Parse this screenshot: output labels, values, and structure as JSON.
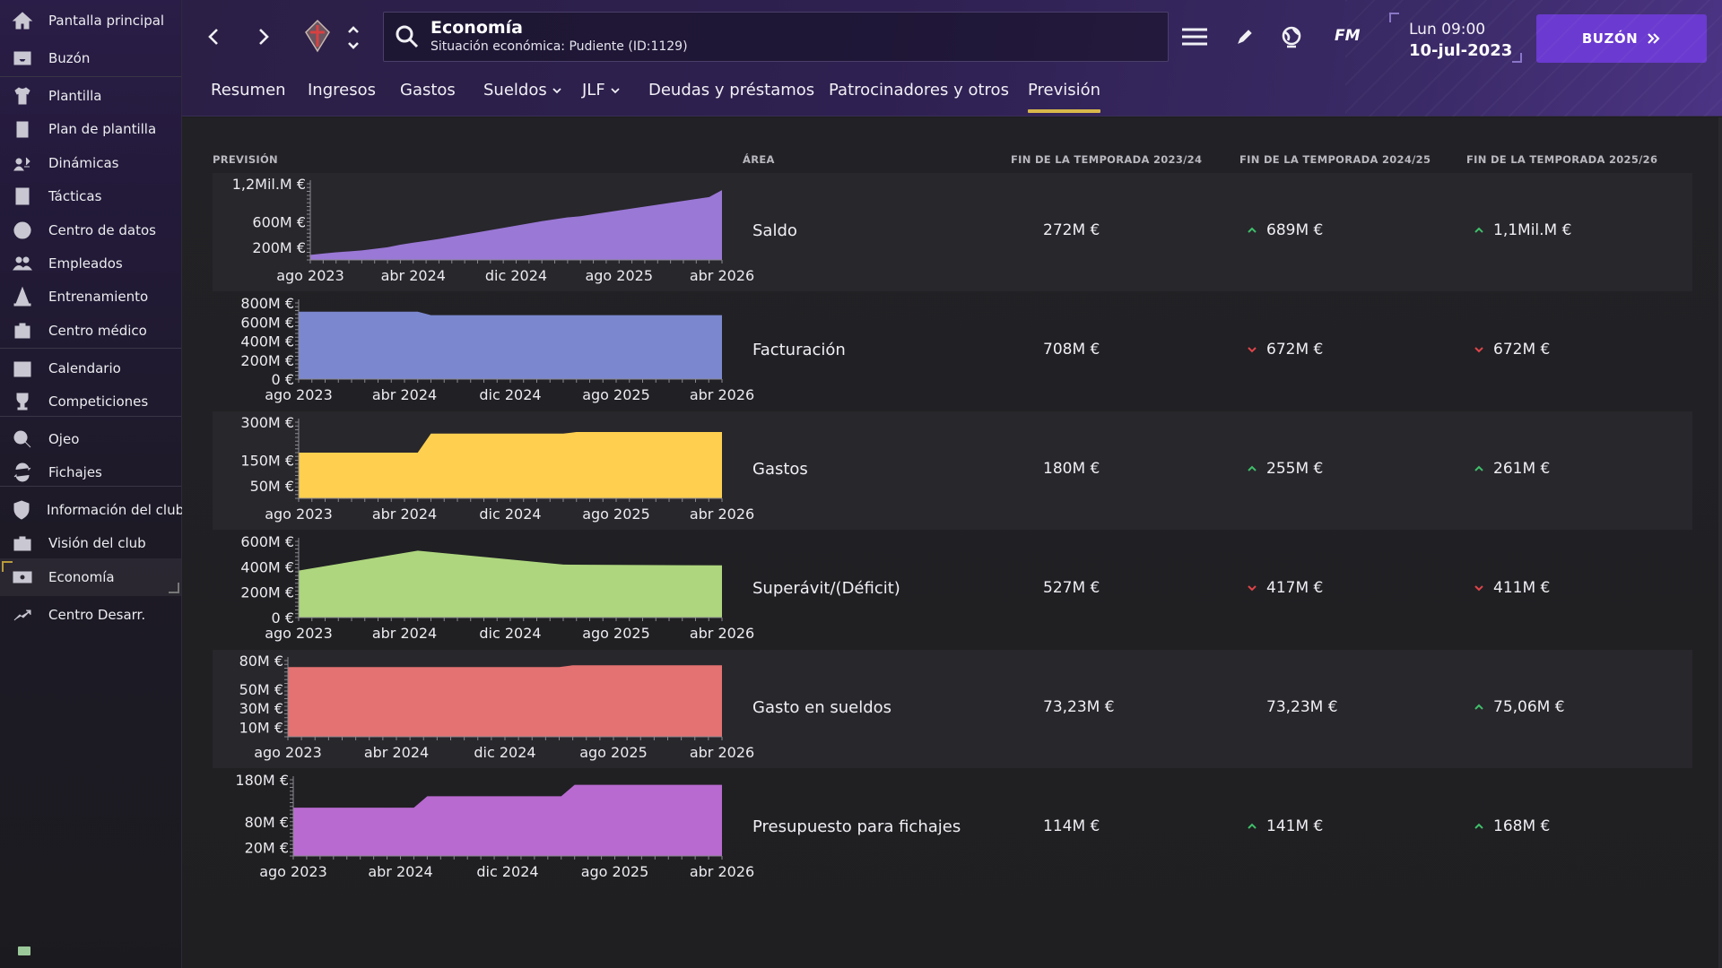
{
  "header": {
    "search_title": "Economía",
    "search_subtitle": "Situación económica: Pudiente (ID:1129)",
    "fm_logo": "FM",
    "date_day": "Lun 09:00",
    "date_full": "10-jul-2023",
    "mailbox_button": "BUZÓN"
  },
  "sidebar": {
    "items": [
      {
        "label": "Pantalla principal",
        "icon": "home-icon"
      },
      {
        "label": "Buzón",
        "icon": "inbox-icon"
      },
      {
        "label": "Plantilla",
        "icon": "shirt-icon"
      },
      {
        "label": "Plan de plantilla",
        "icon": "clipboard-icon"
      },
      {
        "label": "Dinámicas",
        "icon": "dynamics-icon"
      },
      {
        "label": "Tácticas",
        "icon": "tactics-icon"
      },
      {
        "label": "Centro de datos",
        "icon": "data-icon"
      },
      {
        "label": "Empleados",
        "icon": "staff-icon"
      },
      {
        "label": "Entrenamiento",
        "icon": "training-cone-icon"
      },
      {
        "label": "Centro médico",
        "icon": "medical-icon"
      },
      {
        "label": "Calendario",
        "icon": "calendar-icon"
      },
      {
        "label": "Competiciones",
        "icon": "trophy-icon"
      },
      {
        "label": "Ojeo",
        "icon": "scouting-icon"
      },
      {
        "label": "Fichajes",
        "icon": "transfers-icon"
      },
      {
        "label": "Información del club",
        "icon": "club-shield-icon"
      },
      {
        "label": "Visión del club",
        "icon": "briefcase-icon"
      },
      {
        "label": "Economía",
        "icon": "money-icon"
      },
      {
        "label": "Centro Desarr.",
        "icon": "development-icon"
      }
    ]
  },
  "tabs": [
    {
      "label": "Resumen",
      "dropdown": false
    },
    {
      "label": "Ingresos",
      "dropdown": false
    },
    {
      "label": "Gastos",
      "dropdown": false
    },
    {
      "label": "Sueldos",
      "dropdown": true
    },
    {
      "label": "JLF",
      "dropdown": true
    },
    {
      "label": "Deudas y préstamos",
      "dropdown": false
    },
    {
      "label": "Patrocinadores y otros",
      "dropdown": false
    },
    {
      "label": "Previsión",
      "dropdown": false,
      "active": true
    }
  ],
  "table": {
    "headers": {
      "prevision": "PREVISIÓN",
      "area": "ÁREA",
      "season1": "FIN DE LA TEMPORADA 2023/24",
      "season2": "FIN DE LA TEMPORADA 2024/25",
      "season3": "FIN DE LA TEMPORADA 2025/26"
    },
    "rows": [
      {
        "area": "Saldo",
        "s1": "272M €",
        "s2": "689M €",
        "s2_trend": "up",
        "s3": "1,1Mil.M €",
        "s3_trend": "up"
      },
      {
        "area": "Facturación",
        "s1": "708M €",
        "s2": "672M €",
        "s2_trend": "down",
        "s3": "672M €",
        "s3_trend": "down"
      },
      {
        "area": "Gastos",
        "s1": "180M €",
        "s2": "255M €",
        "s2_trend": "up",
        "s3": "261M €",
        "s3_trend": "up"
      },
      {
        "area": "Superávit/(Déficit)",
        "s1": "527M €",
        "s2": "417M €",
        "s2_trend": "down",
        "s3": "411M €",
        "s3_trend": "down"
      },
      {
        "area": "Gasto en sueldos",
        "s1": "73,23M €",
        "s2": "73,23M €",
        "s2_trend": "none",
        "s3": "75,06M €",
        "s3_trend": "up"
      },
      {
        "area": "Presupuesto para fichajes",
        "s1": "114M €",
        "s2": "141M €",
        "s2_trend": "up",
        "s3": "168M €",
        "s3_trend": "up"
      }
    ]
  },
  "colors": {
    "trend_up": "#3fbf6a",
    "trend_down": "#e0454a",
    "accent": "#6b3ad0",
    "tab_underline": "#d8b84a"
  },
  "chart_data": [
    {
      "type": "area",
      "title": "Saldo",
      "color": "#9a78d6",
      "x_ticks": [
        "ago 2023",
        "abr 2024",
        "dic 2024",
        "ago 2025",
        "abr 2026"
      ],
      "y_ticks": [
        {
          "label": "1,2Mil.M €",
          "value": 1200
        },
        {
          "label": "600M €",
          "value": 600
        },
        {
          "label": "200M €",
          "value": 200
        }
      ],
      "ylim": [
        0,
        1200
      ],
      "unit": "M €",
      "x": [
        0,
        1,
        2,
        3,
        4,
        5,
        6,
        7,
        8,
        9,
        10,
        11,
        12,
        13,
        14,
        15,
        16,
        17,
        18,
        19,
        20,
        21,
        22,
        23,
        24,
        25,
        26,
        27,
        28,
        29,
        30,
        31,
        32
      ],
      "values": [
        80,
        100,
        120,
        135,
        150,
        175,
        200,
        240,
        272,
        300,
        330,
        365,
        400,
        435,
        470,
        505,
        540,
        575,
        610,
        640,
        670,
        689,
        720,
        750,
        780,
        810,
        840,
        870,
        900,
        930,
        960,
        990,
        1100
      ]
    },
    {
      "type": "area",
      "title": "Facturación",
      "color": "#7b88cf",
      "x_ticks": [
        "ago 2023",
        "abr 2024",
        "dic 2024",
        "ago 2025",
        "abr 2026"
      ],
      "y_ticks": [
        {
          "label": "800M €",
          "value": 800
        },
        {
          "label": "600M €",
          "value": 600
        },
        {
          "label": "400M €",
          "value": 400
        },
        {
          "label": "200M €",
          "value": 200
        },
        {
          "label": "0 €",
          "value": 0
        }
      ],
      "ylim": [
        0,
        800
      ],
      "unit": "M €",
      "x": [
        0,
        9,
        10,
        32
      ],
      "values": [
        708,
        708,
        672,
        672
      ]
    },
    {
      "type": "area",
      "title": "Gastos",
      "color": "#ffd050",
      "x_ticks": [
        "ago 2023",
        "abr 2024",
        "dic 2024",
        "ago 2025",
        "abr 2026"
      ],
      "y_ticks": [
        {
          "label": "300M €",
          "value": 300
        },
        {
          "label": "150M €",
          "value": 150
        },
        {
          "label": "50M €",
          "value": 50
        }
      ],
      "ylim": [
        0,
        300
      ],
      "unit": "M €",
      "x": [
        0,
        9,
        10,
        20,
        21,
        32
      ],
      "values": [
        180,
        180,
        255,
        255,
        261,
        261
      ]
    },
    {
      "type": "area",
      "title": "Superávit/(Déficit)",
      "color": "#aed67e",
      "x_ticks": [
        "ago 2023",
        "abr 2024",
        "dic 2024",
        "ago 2025",
        "abr 2026"
      ],
      "y_ticks": [
        {
          "label": "600M €",
          "value": 600
        },
        {
          "label": "400M €",
          "value": 400
        },
        {
          "label": "200M €",
          "value": 200
        },
        {
          "label": "0 €",
          "value": 0
        }
      ],
      "ylim": [
        0,
        600
      ],
      "unit": "M €",
      "x": [
        0,
        9,
        20,
        32
      ],
      "values": [
        370,
        527,
        417,
        411
      ]
    },
    {
      "type": "area",
      "title": "Gasto en sueldos",
      "color": "#e47272",
      "x_ticks": [
        "ago 2023",
        "abr 2024",
        "dic 2024",
        "ago 2025",
        "abr 2026"
      ],
      "y_ticks": [
        {
          "label": "80M €",
          "value": 80
        },
        {
          "label": "50M €",
          "value": 50
        },
        {
          "label": "30M €",
          "value": 30
        },
        {
          "label": "10M €",
          "value": 10
        }
      ],
      "ylim": [
        0,
        80
      ],
      "unit": "M €",
      "x": [
        0,
        20,
        21,
        32
      ],
      "values": [
        73.23,
        73.23,
        75.06,
        75.06
      ]
    },
    {
      "type": "area",
      "title": "Presupuesto para fichajes",
      "color": "#b86ad0",
      "x_ticks": [
        "ago 2023",
        "abr 2024",
        "dic 2024",
        "ago 2025",
        "abr 2026"
      ],
      "y_ticks": [
        {
          "label": "180M €",
          "value": 180
        },
        {
          "label": "80M €",
          "value": 80
        },
        {
          "label": "20M €",
          "value": 20
        }
      ],
      "ylim": [
        0,
        180
      ],
      "unit": "M €",
      "x": [
        0,
        9,
        10,
        20,
        21,
        32
      ],
      "values": [
        114,
        114,
        141,
        141,
        168,
        168
      ]
    }
  ]
}
